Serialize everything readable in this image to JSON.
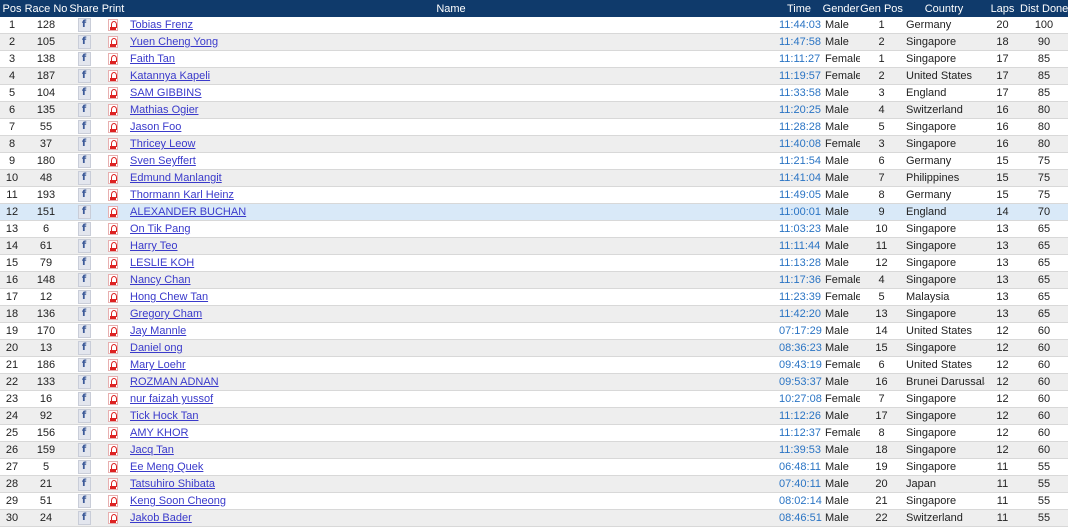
{
  "columns": [
    "Pos",
    "Race No",
    "Share",
    "Print",
    "Name",
    "Time",
    "Gender",
    "Gen Pos",
    "Country",
    "Laps",
    "Dist Done"
  ],
  "icons": {
    "share": "facebook-icon",
    "print": "pdf-icon"
  },
  "colors": {
    "header_bg": "#0f3a6b",
    "link": "#3a3acb",
    "time": "#2a74c4",
    "highlight": "#d9e9f8"
  },
  "highlighted_pos": "12",
  "rows": [
    [
      "1",
      "128",
      "Tobias Frenz",
      "11:44:03",
      "Male",
      "1",
      "Germany",
      "20",
      "100"
    ],
    [
      "2",
      "105",
      "Yuen Cheng Yong",
      "11:47:58",
      "Male",
      "2",
      "Singapore",
      "18",
      "90"
    ],
    [
      "3",
      "138",
      "Faith Tan",
      "11:11:27",
      "Female",
      "1",
      "Singapore",
      "17",
      "85"
    ],
    [
      "4",
      "187",
      "Katannya Kapeli",
      "11:19:57",
      "Female",
      "2",
      "United States",
      "17",
      "85"
    ],
    [
      "5",
      "104",
      "SAM GIBBINS",
      "11:33:58",
      "Male",
      "3",
      "England",
      "17",
      "85"
    ],
    [
      "6",
      "135",
      "Mathias Ogier",
      "11:20:25",
      "Male",
      "4",
      "Switzerland",
      "16",
      "80"
    ],
    [
      "7",
      "55",
      "Jason Foo",
      "11:28:28",
      "Male",
      "5",
      "Singapore",
      "16",
      "80"
    ],
    [
      "8",
      "37",
      "Thricey Leow",
      "11:40:08",
      "Female",
      "3",
      "Singapore",
      "16",
      "80"
    ],
    [
      "9",
      "180",
      "Sven Seyffert",
      "11:21:54",
      "Male",
      "6",
      "Germany",
      "15",
      "75"
    ],
    [
      "10",
      "48",
      "Edmund Manlangit",
      "11:41:04",
      "Male",
      "7",
      "Philippines",
      "15",
      "75"
    ],
    [
      "11",
      "193",
      "Thormann Karl Heinz",
      "11:49:05",
      "Male",
      "8",
      "Germany",
      "15",
      "75"
    ],
    [
      "12",
      "151",
      "ALEXANDER BUCHAN",
      "11:00:01",
      "Male",
      "9",
      "England",
      "14",
      "70"
    ],
    [
      "13",
      "6",
      "On Tik Pang",
      "11:03:23",
      "Male",
      "10",
      "Singapore",
      "13",
      "65"
    ],
    [
      "14",
      "61",
      "Harry Teo",
      "11:11:44",
      "Male",
      "11",
      "Singapore",
      "13",
      "65"
    ],
    [
      "15",
      "79",
      "LESLIE KOH",
      "11:13:28",
      "Male",
      "12",
      "Singapore",
      "13",
      "65"
    ],
    [
      "16",
      "148",
      "Nancy Chan",
      "11:17:36",
      "Female",
      "4",
      "Singapore",
      "13",
      "65"
    ],
    [
      "17",
      "12",
      "Hong Chew Tan",
      "11:23:39",
      "Female",
      "5",
      "Malaysia",
      "13",
      "65"
    ],
    [
      "18",
      "136",
      "Gregory Cham",
      "11:42:20",
      "Male",
      "13",
      "Singapore",
      "13",
      "65"
    ],
    [
      "19",
      "170",
      "Jay Mannle",
      "07:17:29",
      "Male",
      "14",
      "United States",
      "12",
      "60"
    ],
    [
      "20",
      "13",
      "Daniel ong",
      "08:36:23",
      "Male",
      "15",
      "Singapore",
      "12",
      "60"
    ],
    [
      "21",
      "186",
      "Mary Loehr",
      "09:43:19",
      "Female",
      "6",
      "United States",
      "12",
      "60"
    ],
    [
      "22",
      "133",
      "ROZMAN ADNAN",
      "09:53:37",
      "Male",
      "16",
      "Brunei Darussalam",
      "12",
      "60"
    ],
    [
      "23",
      "16",
      "nur faizah yussof",
      "10:27:08",
      "Female",
      "7",
      "Singapore",
      "12",
      "60"
    ],
    [
      "24",
      "92",
      "Tick Hock Tan",
      "11:12:26",
      "Male",
      "17",
      "Singapore",
      "12",
      "60"
    ],
    [
      "25",
      "156",
      "AMY KHOR",
      "11:12:37",
      "Female",
      "8",
      "Singapore",
      "12",
      "60"
    ],
    [
      "26",
      "159",
      "Jacq Tan",
      "11:39:53",
      "Male",
      "18",
      "Singapore",
      "12",
      "60"
    ],
    [
      "27",
      "5",
      "Ee Meng Quek",
      "06:48:11",
      "Male",
      "19",
      "Singapore",
      "11",
      "55"
    ],
    [
      "28",
      "21",
      "Tatsuhiro Shibata",
      "07:40:11",
      "Male",
      "20",
      "Japan",
      "11",
      "55"
    ],
    [
      "29",
      "51",
      "Keng Soon Cheong",
      "08:02:14",
      "Male",
      "21",
      "Singapore",
      "11",
      "55"
    ],
    [
      "30",
      "24",
      "Jakob Bader",
      "08:46:51",
      "Male",
      "22",
      "Switzerland",
      "11",
      "55"
    ]
  ]
}
